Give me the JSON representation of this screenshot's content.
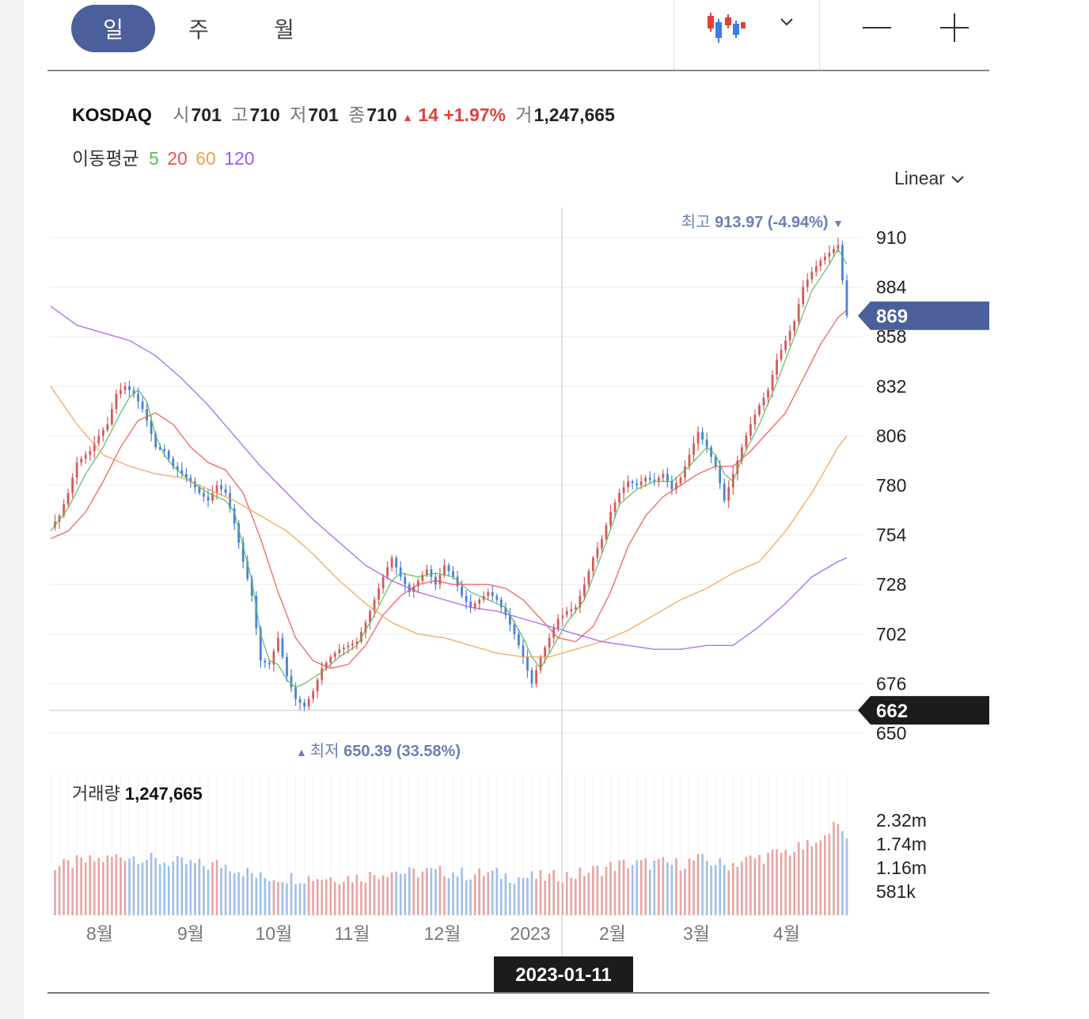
{
  "toolbar": {
    "periods": [
      {
        "label": "일",
        "active": true
      },
      {
        "label": "주",
        "active": false
      },
      {
        "label": "월",
        "active": false
      }
    ],
    "chart_type_icon": "candlestick-icon",
    "dropdown_icon": "chevron-down-icon",
    "zoom_out_icon": "minus-icon",
    "zoom_in_icon": "plus-icon"
  },
  "quote": {
    "name": "KOSDAQ",
    "open_label": "시",
    "open": "701",
    "high_label": "고",
    "high": "710",
    "low_label": "저",
    "low": "701",
    "close_label": "종",
    "close": "710",
    "change_arrow": "▲",
    "change": "14",
    "change_pct": "+1.97%",
    "volume_label": "거",
    "volume": "1,247,665"
  },
  "moving_average": {
    "label": "이동평균",
    "periods": [
      {
        "label": "5",
        "color": "#5cb85c"
      },
      {
        "label": "20",
        "color": "#ef5350"
      },
      {
        "label": "60",
        "color": "#f0a050"
      },
      {
        "label": "120",
        "color": "#9c5cf0"
      }
    ]
  },
  "scale": {
    "label": "Linear"
  },
  "colors": {
    "up": "#d65a5a",
    "down": "#4a82d6",
    "accent": "#4a5f9b",
    "volume_up": "#e8a3a3",
    "volume_down": "#9fbfe8"
  },
  "chart_data": {
    "type": "candlestick",
    "price_axis": {
      "min": 650,
      "max": 910,
      "ticks": [
        "910",
        "884",
        "858",
        "832",
        "806",
        "780",
        "754",
        "728",
        "702",
        "676",
        "650"
      ]
    },
    "time_axis": {
      "labels": [
        "8월",
        "9월",
        "10월",
        "11월",
        "12월",
        "2023",
        "2월",
        "3월",
        "4월"
      ]
    },
    "current_price_label": "869",
    "current_price": 869,
    "crosshair_price_label": "662",
    "crosshair_price": 662,
    "crosshair_date": "2023-01-11",
    "max_annotation": {
      "label": "최고",
      "value": "913.97",
      "pct": "(-4.94%)",
      "arrow": "▼"
    },
    "min_annotation": {
      "label": "최저",
      "value": "650.39",
      "pct": "(33.58%)",
      "arrow": "▲"
    },
    "close_path": [
      [
        0,
        758
      ],
      [
        2,
        764
      ],
      [
        4,
        776
      ],
      [
        6,
        792
      ],
      [
        9,
        798
      ],
      [
        11,
        806
      ],
      [
        13,
        812
      ],
      [
        15,
        828
      ],
      [
        17,
        832
      ],
      [
        19,
        828
      ],
      [
        21,
        820
      ],
      [
        22,
        814
      ],
      [
        24,
        800
      ],
      [
        26,
        798
      ],
      [
        28,
        790
      ],
      [
        30,
        786
      ],
      [
        32,
        782
      ],
      [
        34,
        776
      ],
      [
        36,
        772
      ],
      [
        38,
        780
      ],
      [
        40,
        776
      ],
      [
        42,
        760
      ],
      [
        44,
        740
      ],
      [
        46,
        722
      ],
      [
        48,
        688
      ],
      [
        50,
        686
      ],
      [
        52,
        700
      ],
      [
        54,
        680
      ],
      [
        56,
        668
      ],
      [
        58,
        664
      ],
      [
        60,
        672
      ],
      [
        62,
        684
      ],
      [
        64,
        690
      ],
      [
        66,
        694
      ],
      [
        68,
        696
      ],
      [
        70,
        698
      ],
      [
        72,
        708
      ],
      [
        74,
        720
      ],
      [
        76,
        732
      ],
      [
        78,
        742
      ],
      [
        80,
        732
      ],
      [
        82,
        724
      ],
      [
        84,
        730
      ],
      [
        86,
        736
      ],
      [
        88,
        728
      ],
      [
        90,
        738
      ],
      [
        92,
        732
      ],
      [
        94,
        722
      ],
      [
        96,
        716
      ],
      [
        98,
        720
      ],
      [
        100,
        724
      ],
      [
        102,
        720
      ],
      [
        104,
        712
      ],
      [
        106,
        702
      ],
      [
        108,
        690
      ],
      [
        110,
        676
      ],
      [
        112,
        690
      ],
      [
        114,
        700
      ],
      [
        116,
        710
      ],
      [
        118,
        714
      ],
      [
        120,
        716
      ],
      [
        122,
        728
      ],
      [
        124,
        742
      ],
      [
        126,
        752
      ],
      [
        128,
        766
      ],
      [
        130,
        776
      ],
      [
        132,
        782
      ],
      [
        134,
        780
      ],
      [
        136,
        784
      ],
      [
        138,
        782
      ],
      [
        140,
        786
      ],
      [
        142,
        778
      ],
      [
        144,
        784
      ],
      [
        146,
        796
      ],
      [
        148,
        808
      ],
      [
        150,
        800
      ],
      [
        152,
        790
      ],
      [
        154,
        772
      ],
      [
        156,
        786
      ],
      [
        158,
        800
      ],
      [
        160,
        812
      ],
      [
        162,
        822
      ],
      [
        164,
        830
      ],
      [
        166,
        846
      ],
      [
        168,
        856
      ],
      [
        170,
        866
      ],
      [
        172,
        884
      ],
      [
        174,
        892
      ],
      [
        176,
        898
      ],
      [
        178,
        902
      ],
      [
        180,
        906
      ],
      [
        182,
        869
      ]
    ],
    "ma5_path": [
      [
        0,
        756
      ],
      [
        4,
        768
      ],
      [
        8,
        786
      ],
      [
        12,
        800
      ],
      [
        16,
        818
      ],
      [
        18,
        826
      ],
      [
        20,
        830
      ],
      [
        22,
        824
      ],
      [
        24,
        806
      ],
      [
        26,
        796
      ],
      [
        28,
        790
      ],
      [
        32,
        782
      ],
      [
        36,
        776
      ],
      [
        40,
        772
      ],
      [
        42,
        766
      ],
      [
        44,
        748
      ],
      [
        46,
        730
      ],
      [
        48,
        702
      ],
      [
        50,
        688
      ],
      [
        52,
        686
      ],
      [
        54,
        678
      ],
      [
        56,
        674
      ],
      [
        58,
        676
      ],
      [
        62,
        682
      ],
      [
        66,
        690
      ],
      [
        70,
        696
      ],
      [
        74,
        712
      ],
      [
        78,
        730
      ],
      [
        80,
        734
      ],
      [
        84,
        732
      ],
      [
        88,
        734
      ],
      [
        92,
        732
      ],
      [
        96,
        724
      ],
      [
        100,
        720
      ],
      [
        104,
        716
      ],
      [
        108,
        700
      ],
      [
        110,
        690
      ],
      [
        112,
        684
      ],
      [
        114,
        692
      ],
      [
        118,
        708
      ],
      [
        122,
        720
      ],
      [
        126,
        744
      ],
      [
        130,
        770
      ],
      [
        134,
        778
      ],
      [
        138,
        782
      ],
      [
        142,
        782
      ],
      [
        146,
        790
      ],
      [
        150,
        800
      ],
      [
        152,
        796
      ],
      [
        154,
        786
      ],
      [
        156,
        782
      ],
      [
        158,
        794
      ],
      [
        162,
        812
      ],
      [
        166,
        834
      ],
      [
        170,
        858
      ],
      [
        174,
        882
      ],
      [
        178,
        896
      ],
      [
        180,
        904
      ],
      [
        182,
        896
      ]
    ],
    "ma20_path": [
      [
        0,
        752
      ],
      [
        4,
        756
      ],
      [
        8,
        766
      ],
      [
        12,
        782
      ],
      [
        16,
        800
      ],
      [
        20,
        814
      ],
      [
        24,
        818
      ],
      [
        28,
        812
      ],
      [
        32,
        800
      ],
      [
        36,
        792
      ],
      [
        40,
        788
      ],
      [
        44,
        776
      ],
      [
        48,
        752
      ],
      [
        52,
        724
      ],
      [
        56,
        700
      ],
      [
        60,
        688
      ],
      [
        64,
        684
      ],
      [
        68,
        686
      ],
      [
        72,
        696
      ],
      [
        76,
        712
      ],
      [
        80,
        722
      ],
      [
        84,
        728
      ],
      [
        88,
        730
      ],
      [
        92,
        728
      ],
      [
        96,
        728
      ],
      [
        100,
        728
      ],
      [
        104,
        726
      ],
      [
        108,
        720
      ],
      [
        112,
        710
      ],
      [
        116,
        700
      ],
      [
        120,
        698
      ],
      [
        124,
        706
      ],
      [
        128,
        724
      ],
      [
        132,
        748
      ],
      [
        136,
        764
      ],
      [
        140,
        774
      ],
      [
        144,
        780
      ],
      [
        148,
        786
      ],
      [
        152,
        790
      ],
      [
        156,
        790
      ],
      [
        160,
        798
      ],
      [
        164,
        808
      ],
      [
        168,
        818
      ],
      [
        172,
        836
      ],
      [
        176,
        854
      ],
      [
        180,
        868
      ],
      [
        182,
        872
      ]
    ],
    "ma60_path": [
      [
        0,
        832
      ],
      [
        6,
        812
      ],
      [
        12,
        796
      ],
      [
        18,
        790
      ],
      [
        24,
        786
      ],
      [
        30,
        784
      ],
      [
        36,
        778
      ],
      [
        42,
        772
      ],
      [
        48,
        764
      ],
      [
        54,
        756
      ],
      [
        60,
        744
      ],
      [
        66,
        730
      ],
      [
        72,
        718
      ],
      [
        78,
        708
      ],
      [
        84,
        702
      ],
      [
        90,
        700
      ],
      [
        96,
        696
      ],
      [
        102,
        692
      ],
      [
        108,
        690
      ],
      [
        114,
        690
      ],
      [
        120,
        694
      ],
      [
        126,
        698
      ],
      [
        132,
        704
      ],
      [
        138,
        712
      ],
      [
        144,
        720
      ],
      [
        150,
        726
      ],
      [
        156,
        734
      ],
      [
        162,
        740
      ],
      [
        168,
        756
      ],
      [
        174,
        776
      ],
      [
        180,
        800
      ],
      [
        182,
        806
      ]
    ],
    "ma120_path": [
      [
        0,
        874
      ],
      [
        6,
        864
      ],
      [
        12,
        860
      ],
      [
        18,
        856
      ],
      [
        24,
        848
      ],
      [
        30,
        836
      ],
      [
        36,
        822
      ],
      [
        42,
        806
      ],
      [
        48,
        790
      ],
      [
        54,
        776
      ],
      [
        60,
        762
      ],
      [
        66,
        750
      ],
      [
        72,
        738
      ],
      [
        78,
        730
      ],
      [
        84,
        724
      ],
      [
        90,
        720
      ],
      [
        96,
        716
      ],
      [
        102,
        714
      ],
      [
        108,
        710
      ],
      [
        114,
        706
      ],
      [
        120,
        702
      ],
      [
        126,
        698
      ],
      [
        132,
        696
      ],
      [
        138,
        694
      ],
      [
        144,
        694
      ],
      [
        150,
        696
      ],
      [
        156,
        696
      ],
      [
        162,
        706
      ],
      [
        168,
        718
      ],
      [
        174,
        732
      ],
      [
        180,
        740
      ],
      [
        182,
        742
      ]
    ],
    "volume": {
      "label": "거래량",
      "value": "1,247,665",
      "axis_ticks": [
        "2.32m",
        "1.74m",
        "1.16m",
        "581k"
      ],
      "axis_values": [
        2320000,
        1740000,
        1160000,
        581000
      ]
    }
  }
}
